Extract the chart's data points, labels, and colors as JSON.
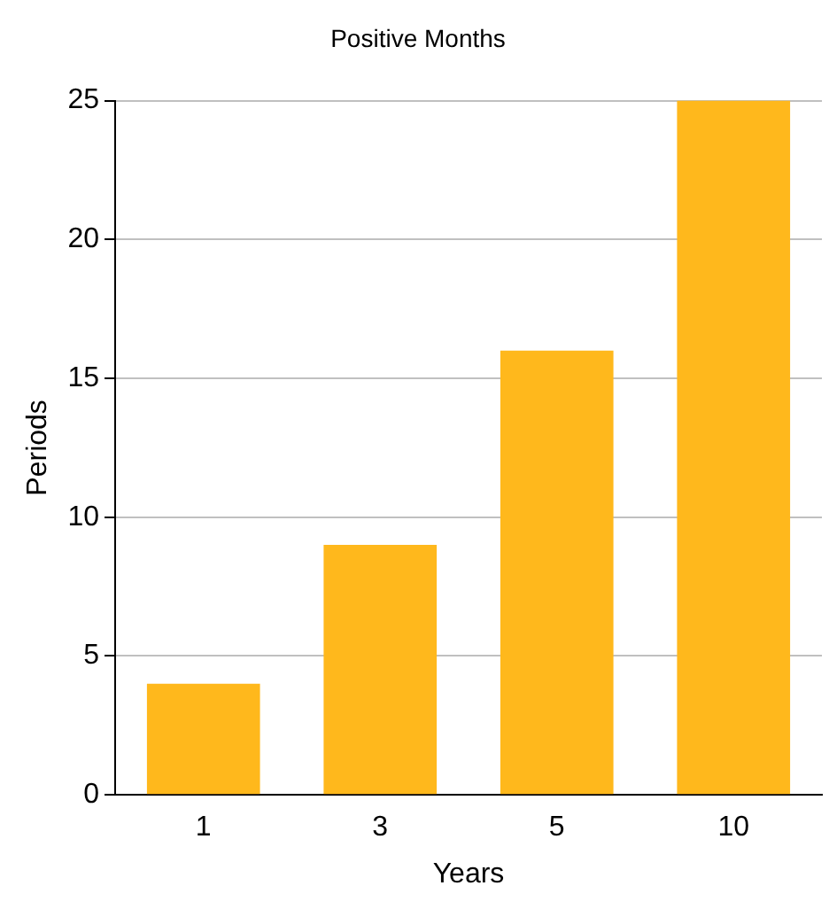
{
  "chart_data": {
    "type": "bar",
    "title": "Positive Months",
    "xlabel": "Years",
    "ylabel": "Periods",
    "categories": [
      "1",
      "3",
      "5",
      "10"
    ],
    "values": [
      4,
      9,
      16,
      25
    ],
    "color": "#ffb81c",
    "ylim": [
      0,
      25
    ],
    "yticks": [
      0,
      5,
      10,
      15,
      20,
      25
    ],
    "grid": "y",
    "legend": false
  }
}
